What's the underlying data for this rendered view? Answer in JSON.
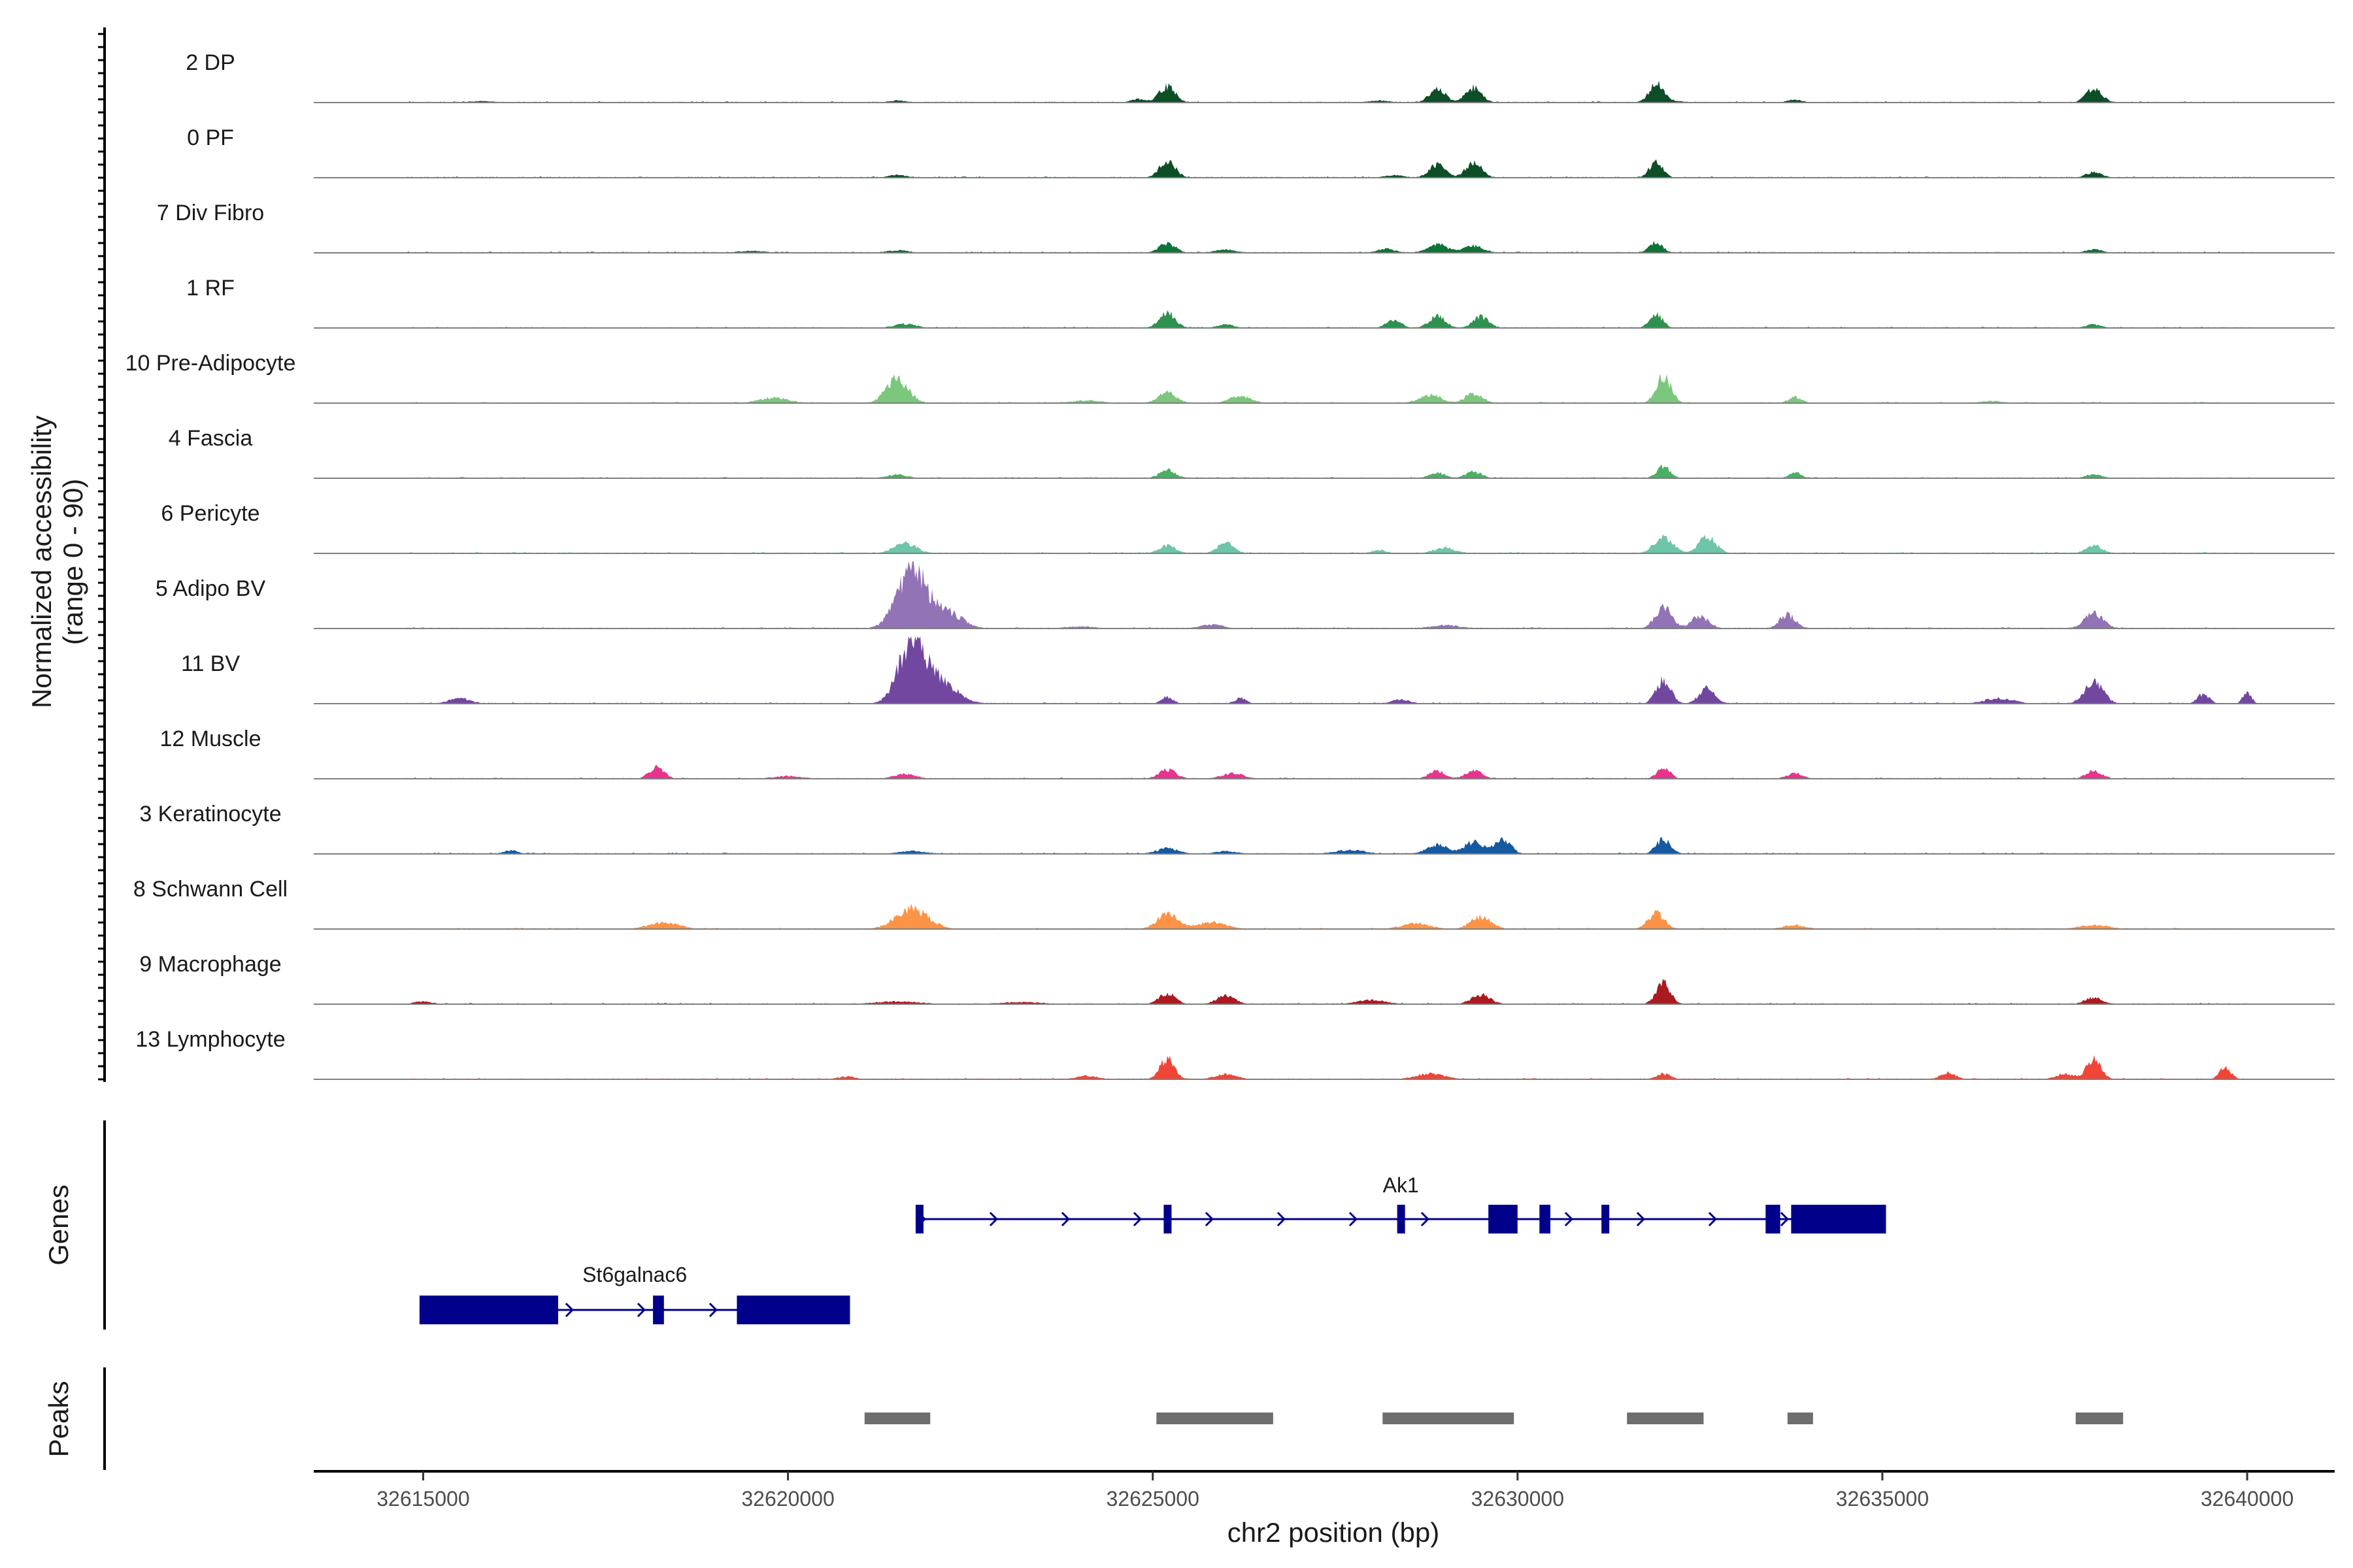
{
  "chart_data": {
    "type": "area",
    "title": "",
    "region": "chr2",
    "xlabel": "chr2 position (bp)",
    "ylabel": "Normalized accessibility",
    "ylabel_range": "(range 0 - 90)",
    "ylim": [
      0,
      90
    ],
    "xlim": [
      32613500,
      32641200
    ],
    "x_ticks": [
      32615000,
      32620000,
      32625000,
      32630000,
      32635000,
      32640000
    ],
    "x_tick_labels": [
      "32615000",
      "32620000",
      "32625000",
      "32630000",
      "32635000",
      "32640000"
    ],
    "tracks": [
      {
        "name": "2 DP",
        "color": "#00441b",
        "peaks": [
          [
            32625200,
            24,
            110
          ],
          [
            32628900,
            20,
            110
          ],
          [
            32629400,
            22,
            110
          ],
          [
            32631900,
            24,
            90
          ],
          [
            32637900,
            20,
            110
          ],
          [
            32624800,
            5,
            100
          ],
          [
            32632000,
            4,
            200
          ],
          [
            32633800,
            4,
            100
          ],
          [
            32621500,
            3,
            120
          ],
          [
            32615800,
            2,
            200
          ],
          [
            32628100,
            3,
            150
          ]
        ]
      },
      {
        "name": "0 PF",
        "color": "#00441b",
        "peaks": [
          [
            32625200,
            24,
            110
          ],
          [
            32628900,
            20,
            110
          ],
          [
            32629400,
            22,
            110
          ],
          [
            32631900,
            24,
            90
          ],
          [
            32637900,
            8,
            110
          ],
          [
            32621500,
            4,
            120
          ],
          [
            32628300,
            4,
            120
          ]
        ]
      },
      {
        "name": "7 Div Fibro",
        "color": "#006d2c",
        "peaks": [
          [
            32625200,
            14,
            110
          ],
          [
            32628900,
            12,
            140
          ],
          [
            32629400,
            10,
            140
          ],
          [
            32631900,
            16,
            90
          ],
          [
            32626000,
            5,
            140
          ],
          [
            32628200,
            6,
            120
          ],
          [
            32621500,
            4,
            150
          ],
          [
            32619500,
            3,
            200
          ],
          [
            32637900,
            5,
            110
          ]
        ]
      },
      {
        "name": "1 RF",
        "color": "#238b45",
        "peaks": [
          [
            32625200,
            22,
            110
          ],
          [
            32628900,
            18,
            110
          ],
          [
            32629500,
            16,
            110
          ],
          [
            32631900,
            20,
            90
          ],
          [
            32628300,
            12,
            100
          ],
          [
            32621600,
            6,
            150
          ],
          [
            32626000,
            5,
            120
          ],
          [
            32637900,
            5,
            110
          ]
        ]
      },
      {
        "name": "10 Pre-Adipocyte",
        "color": "#74c476",
        "peaks": [
          [
            32621500,
            36,
            150
          ],
          [
            32632000,
            40,
            100
          ],
          [
            32625200,
            16,
            120
          ],
          [
            32626200,
            10,
            150
          ],
          [
            32628800,
            12,
            150
          ],
          [
            32629400,
            14,
            120
          ],
          [
            32619800,
            8,
            200
          ],
          [
            32633800,
            9,
            90
          ],
          [
            32624100,
            4,
            200
          ],
          [
            32636500,
            3,
            150
          ]
        ]
      },
      {
        "name": "4 Fascia",
        "color": "#41ab5d",
        "peaks": [
          [
            32625200,
            12,
            110
          ],
          [
            32628900,
            8,
            110
          ],
          [
            32629400,
            10,
            110
          ],
          [
            32632000,
            18,
            90
          ],
          [
            32633800,
            9,
            80
          ],
          [
            32621500,
            5,
            150
          ],
          [
            32637900,
            6,
            110
          ]
        ]
      },
      {
        "name": "6 Pericyte",
        "color": "#66c2a4",
        "peaks": [
          [
            32621600,
            16,
            150
          ],
          [
            32625200,
            12,
            110
          ],
          [
            32626000,
            16,
            110
          ],
          [
            32632000,
            24,
            130
          ],
          [
            32632600,
            24,
            120
          ],
          [
            32637900,
            12,
            110
          ],
          [
            32629000,
            8,
            150
          ],
          [
            32628100,
            5,
            100
          ]
        ]
      },
      {
        "name": "5 Adipo BV",
        "color": "#8c6bb1",
        "peaks": [
          [
            32621700,
            90,
            200
          ],
          [
            32622200,
            22,
            200
          ],
          [
            32632000,
            32,
            110
          ],
          [
            32632500,
            18,
            120
          ],
          [
            32633700,
            20,
            110
          ],
          [
            32637900,
            22,
            130
          ],
          [
            32625800,
            6,
            150
          ],
          [
            32629000,
            5,
            200
          ],
          [
            32624000,
            3,
            200
          ]
        ]
      },
      {
        "name": "11 BV",
        "color": "#6a3d9a",
        "peaks": [
          [
            32621700,
            90,
            180
          ],
          [
            32622100,
            30,
            220
          ],
          [
            32632000,
            34,
            100
          ],
          [
            32632600,
            22,
            110
          ],
          [
            32637900,
            30,
            130
          ],
          [
            32639400,
            14,
            80
          ],
          [
            32640000,
            16,
            60
          ],
          [
            32636600,
            8,
            200
          ],
          [
            32615500,
            8,
            150
          ],
          [
            32625200,
            10,
            80
          ],
          [
            32626200,
            8,
            80
          ],
          [
            32628400,
            6,
            120
          ]
        ]
      },
      {
        "name": "12 Muscle",
        "color": "#e7298a",
        "peaks": [
          [
            32618200,
            18,
            100
          ],
          [
            32625200,
            14,
            120
          ],
          [
            32626100,
            8,
            150
          ],
          [
            32628900,
            12,
            110
          ],
          [
            32629400,
            12,
            110
          ],
          [
            32632000,
            16,
            90
          ],
          [
            32633800,
            8,
            110
          ],
          [
            32637900,
            12,
            110
          ],
          [
            32621600,
            7,
            150
          ],
          [
            32620000,
            4,
            200
          ]
        ]
      },
      {
        "name": "3 Keratinocyte",
        "color": "#08519c",
        "peaks": [
          [
            32628900,
            14,
            140
          ],
          [
            32629400,
            18,
            130
          ],
          [
            32629800,
            20,
            110
          ],
          [
            32632000,
            22,
            100
          ],
          [
            32625200,
            8,
            150
          ],
          [
            32626000,
            4,
            150
          ],
          [
            32621700,
            4,
            200
          ],
          [
            32616200,
            5,
            100
          ],
          [
            32627700,
            6,
            200
          ]
        ]
      },
      {
        "name": "8 Schwann Cell",
        "color": "#fd8d3c",
        "peaks": [
          [
            32621700,
            30,
            220
          ],
          [
            32625200,
            22,
            140
          ],
          [
            32625800,
            10,
            200
          ],
          [
            32629500,
            18,
            140
          ],
          [
            32631900,
            24,
            110
          ],
          [
            32618300,
            10,
            200
          ],
          [
            32628600,
            8,
            200
          ],
          [
            32633800,
            6,
            150
          ],
          [
            32637900,
            6,
            200
          ]
        ]
      },
      {
        "name": "9 Macrophage",
        "color": "#a50f15",
        "peaks": [
          [
            32625200,
            16,
            110
          ],
          [
            32626000,
            12,
            130
          ],
          [
            32629500,
            14,
            130
          ],
          [
            32632000,
            30,
            100
          ],
          [
            32637900,
            10,
            120
          ],
          [
            32615000,
            4,
            120
          ],
          [
            32621500,
            4,
            300
          ],
          [
            32623200,
            3,
            300
          ],
          [
            32628000,
            6,
            200
          ]
        ]
      },
      {
        "name": "13 Lymphocyte",
        "color": "#ef3b2c",
        "peaks": [
          [
            32625200,
            30,
            100
          ],
          [
            32637900,
            30,
            100
          ],
          [
            32639700,
            18,
            80
          ],
          [
            32635900,
            10,
            100
          ],
          [
            32626000,
            8,
            150
          ],
          [
            32628800,
            8,
            200
          ],
          [
            32632000,
            8,
            100
          ],
          [
            32620800,
            4,
            120
          ],
          [
            32624100,
            5,
            150
          ],
          [
            32637500,
            8,
            120
          ]
        ]
      }
    ],
    "genes": {
      "title": "Genes",
      "color": "#00008b",
      "items": [
        {
          "name": "Ak1",
          "strand": "+",
          "start": 32621750,
          "end": 32635050,
          "exons": [
            [
              32621750,
              32621850
            ],
            [
              32625150,
              32625250
            ],
            [
              32628350,
              32628450
            ],
            [
              32629600,
              32630000
            ],
            [
              32630300,
              32630450
            ],
            [
              32631150,
              32631250
            ],
            [
              32633400,
              32633600
            ],
            [
              32633750,
              32635050
            ]
          ]
        },
        {
          "name": "St6galnac6",
          "strand": "+",
          "start": 32614950,
          "end": 32620850,
          "exons": [
            [
              32614950,
              32616850
            ],
            [
              32618150,
              32618300
            ],
            [
              32619300,
              32620850
            ]
          ]
        }
      ]
    },
    "peaks_track": {
      "title": "Peaks",
      "color": "#6e6e6e",
      "regions": [
        [
          32621050,
          32621950
        ],
        [
          32625050,
          32626650
        ],
        [
          32628150,
          32629950
        ],
        [
          32631500,
          32632550
        ],
        [
          32633700,
          32634050
        ],
        [
          32637650,
          32638300
        ]
      ]
    }
  }
}
